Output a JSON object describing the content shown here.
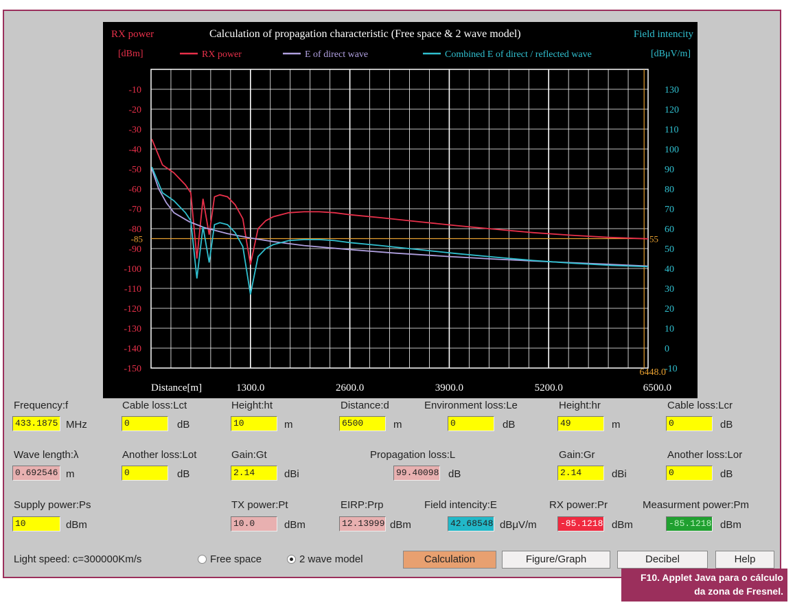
{
  "chart_data": {
    "type": "line",
    "title": "Calculation of propagation characteristic (Free space & 2 wave model)",
    "left_axis_name": "RX power",
    "left_axis_unit": "[dBm]",
    "right_axis_name": "Field intencity",
    "right_axis_unit": "[dBμV/m]",
    "xlabel": "Distance[m]",
    "x_ticks": [
      "1300.0",
      "2600.0",
      "3900.0",
      "5200.0",
      "6500.0"
    ],
    "xlim": [
      0,
      6500
    ],
    "ylim_left": [
      -150,
      0
    ],
    "ylim_right": [
      -10,
      140
    ],
    "left_ticks": [
      "-10",
      "-20",
      "-30",
      "-40",
      "-50",
      "-60",
      "-70",
      "-80",
      "-90",
      "-100",
      "-110",
      "-120",
      "-130",
      "-140",
      "-150"
    ],
    "right_ticks": [
      "130",
      "120",
      "110",
      "100",
      "90",
      "80",
      "70",
      "60",
      "50",
      "40",
      "30",
      "20",
      "10",
      "0",
      "-10"
    ],
    "marker_left_label": "-85",
    "marker_right_label": "55",
    "marker_x_label": "6448.0",
    "marker_y": -85,
    "marker_x": 6448,
    "grid": true,
    "legend_position": "top",
    "series": [
      {
        "name": "RX power",
        "color": "#e8304a",
        "x": [
          10,
          150,
          300,
          450,
          520,
          600,
          680,
          760,
          830,
          900,
          1000,
          1100,
          1200,
          1300,
          1400,
          1500,
          1600,
          1800,
          2000,
          2200,
          2400,
          2600,
          3000,
          3500,
          4000,
          4500,
          5000,
          5500,
          6000,
          6500
        ],
        "values": [
          -35,
          -48,
          -52,
          -58,
          -62,
          -95,
          -65,
          -83,
          -64,
          -63,
          -64,
          -68,
          -75,
          -98,
          -80,
          -76,
          -74,
          -72,
          -71.5,
          -71.5,
          -72,
          -73,
          -74.5,
          -76.5,
          -78.5,
          -80.3,
          -82,
          -83.3,
          -84.4,
          -85.1
        ]
      },
      {
        "name": "E of direct wave",
        "color": "#b0a0e0",
        "x": [
          10,
          100,
          200,
          300,
          500,
          700,
          1000,
          1300,
          1600,
          2000,
          2600,
          3200,
          3900,
          4500,
          5200,
          5800,
          6500
        ],
        "values": [
          -50,
          -60,
          -67,
          -72,
          -76.5,
          -79.5,
          -82.5,
          -84.7,
          -86.5,
          -88.5,
          -90.5,
          -92.3,
          -94,
          -95.3,
          -96.6,
          -97.6,
          -98.8
        ]
      },
      {
        "name": "Combined E of direct / reflected wave",
        "color": "#30c0d0",
        "x": [
          10,
          150,
          300,
          450,
          520,
          600,
          680,
          760,
          830,
          900,
          1000,
          1100,
          1200,
          1300,
          1400,
          1500,
          1600,
          1800,
          2000,
          2200,
          2400,
          2600,
          3000,
          3500,
          4000,
          4500,
          5000,
          5500,
          6000,
          6500
        ],
        "values": [
          -49,
          -62,
          -66,
          -72,
          -76,
          -105,
          -79,
          -97,
          -78,
          -77,
          -78,
          -82,
          -89,
          -113,
          -94,
          -90,
          -88,
          -86,
          -85.5,
          -85.5,
          -86,
          -87,
          -88.5,
          -90.5,
          -92.5,
          -94.3,
          -96,
          -97.3,
          -98.4,
          -99.1
        ]
      }
    ]
  },
  "inputs": {
    "frequency": {
      "label": "Frequency:f",
      "value": "433.1875",
      "unit": "MHz"
    },
    "cable_loss_t": {
      "label": "Cable loss:Lct",
      "value": "0",
      "unit": "dB"
    },
    "height_t": {
      "label": "Height:ht",
      "value": "10",
      "unit": "m"
    },
    "distance": {
      "label": "Distance:d",
      "value": "6500",
      "unit": "m"
    },
    "environment_loss": {
      "label": "Environment loss:Le",
      "value": "0",
      "unit": "dB"
    },
    "height_r": {
      "label": "Height:hr",
      "value": "49",
      "unit": "m"
    },
    "cable_loss_r": {
      "label": "Cable loss:Lcr",
      "value": "0",
      "unit": "dB"
    },
    "wave_length": {
      "label": "Wave length:λ",
      "value": "0.692546",
      "unit": "m"
    },
    "another_loss_t": {
      "label": "Another loss:Lot",
      "value": "0",
      "unit": "dB"
    },
    "gain_t": {
      "label": "Gain:Gt",
      "value": "2.14",
      "unit": "dBi"
    },
    "propagation_loss": {
      "label": "Propagation loss:L",
      "value": "99.40098",
      "unit": "dB"
    },
    "gain_r": {
      "label": "Gain:Gr",
      "value": "2.14",
      "unit": "dBi"
    },
    "another_loss_r": {
      "label": "Another loss:Lor",
      "value": "0",
      "unit": "dB"
    },
    "supply_power": {
      "label": "Supply power:Ps",
      "value": "10",
      "unit": "dBm"
    },
    "tx_power": {
      "label": "TX power:Pt",
      "value": "10.0",
      "unit": "dBm"
    },
    "eirp": {
      "label": "EIRP:Prp",
      "value": "12.13999",
      "unit": "dBm"
    },
    "field_intencity": {
      "label": "Field intencity:E",
      "value": "42.68548",
      "unit": "dBμV/m"
    },
    "rx_power": {
      "label": "RX power:Pr",
      "value": "-85.1218",
      "unit": "dBm"
    },
    "measurment_power": {
      "label": "Measurment power:Pm",
      "value": "-85.1218",
      "unit": "dBm"
    }
  },
  "bottom": {
    "light_speed": "Light speed: c=300000Km/s",
    "radio_free_space": "Free space",
    "radio_two_wave": "2 wave model",
    "selected_mode": "2 wave model",
    "btn_calculation": "Calculation",
    "btn_figure": "Figure/Graph",
    "btn_decibel": "Decibel",
    "btn_help": "Help"
  },
  "caption": {
    "line1": "F10. Applet Java para o cálculo",
    "line2": "da zona de Fresnel."
  }
}
